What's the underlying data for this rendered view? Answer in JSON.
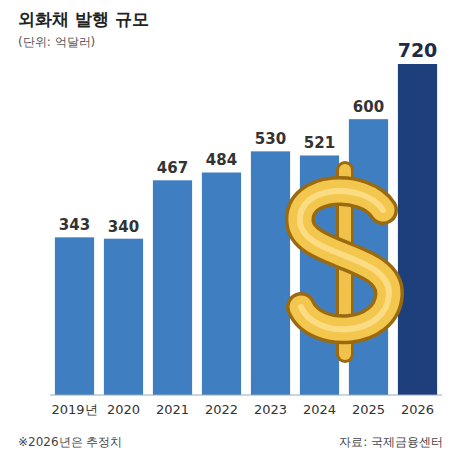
{
  "chart_data": {
    "type": "bar",
    "title": "외화채 발행 규모",
    "subtitle": "(단위: 억달러)",
    "categories": [
      "2019년",
      "2020",
      "2021",
      "2022",
      "2023",
      "2024",
      "2025",
      "2026"
    ],
    "values": [
      343,
      340,
      467,
      484,
      530,
      521,
      600,
      720
    ],
    "colors": [
      "#3f7fc1",
      "#3f7fc1",
      "#3f7fc1",
      "#3f7fc1",
      "#3f7fc1",
      "#3f7fc1",
      "#3f7fc1",
      "#1d3f7c"
    ],
    "ylim": [
      0,
      720
    ],
    "tick_labels": "x",
    "grid": false,
    "data_labels": true,
    "note": "※2026년은 추정치",
    "source": "자료: 국제금융센터"
  }
}
